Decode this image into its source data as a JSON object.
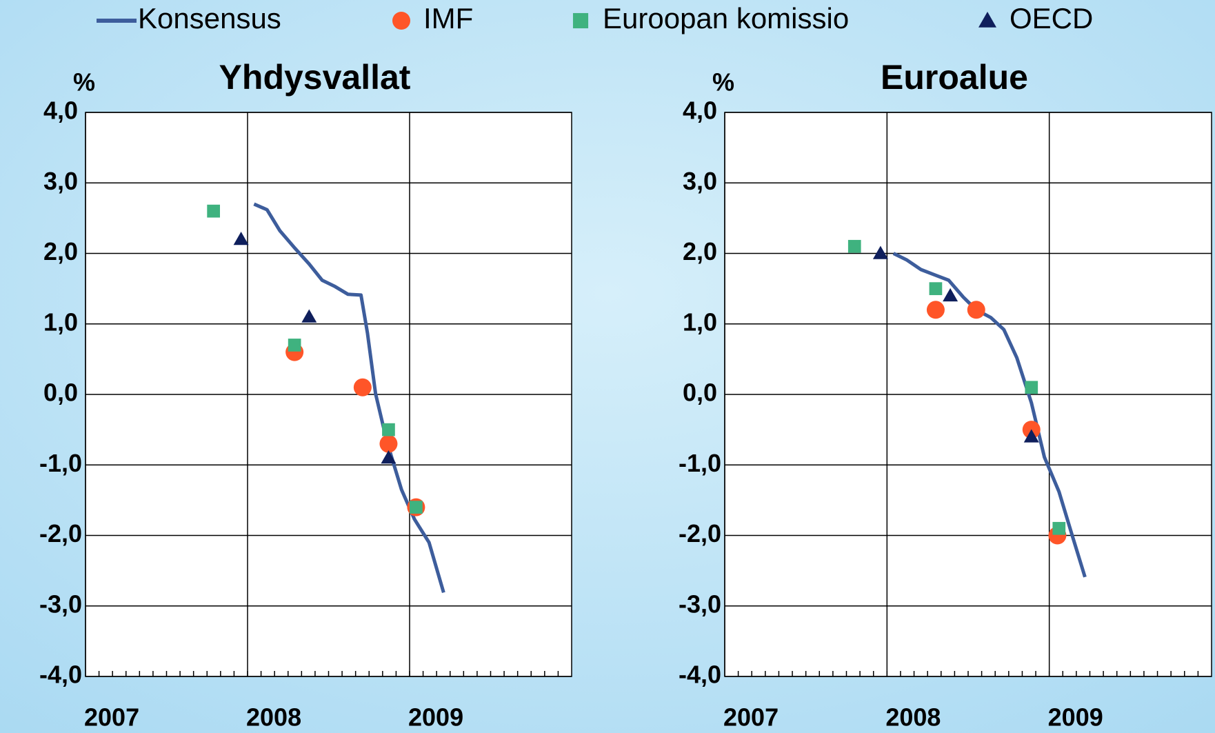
{
  "chart_data": [
    {
      "type": "line",
      "title": "Yhdysvallat",
      "ylabel": "%",
      "legend": "top",
      "xlim": [
        2007,
        2010
      ],
      "xticks": [
        2007,
        2008,
        2009
      ],
      "ylim": [
        -4,
        4
      ],
      "yticks": [
        {
          "value": -4,
          "label": "-4,0"
        },
        {
          "value": -3,
          "label": "-3,0"
        },
        {
          "value": -2,
          "label": "-2,0"
        },
        {
          "value": -1,
          "label": "-1,0"
        },
        {
          "value": 0,
          "label": "0,0"
        },
        {
          "value": 1,
          "label": "1,0"
        },
        {
          "value": 2,
          "label": "2,0"
        },
        {
          "value": 3,
          "label": "3,0"
        },
        {
          "value": 4,
          "label": "4,0"
        }
      ],
      "grid": true,
      "series": [
        {
          "name": "Konsensus",
          "type": "line",
          "color": "#3d5d9c",
          "x": [
            2008.04,
            2008.12,
            2008.2,
            2008.29,
            2008.38,
            2008.46,
            2008.54,
            2008.62,
            2008.7,
            2008.74,
            2008.79,
            2008.86,
            2008.95,
            2009.03,
            2009.12,
            2009.21
          ],
          "values": [
            2.7,
            2.62,
            2.32,
            2.08,
            1.85,
            1.62,
            1.53,
            1.42,
            1.41,
            0.87,
            0.01,
            -0.67,
            -1.35,
            -1.77,
            -2.1,
            -2.81
          ]
        },
        {
          "name": "IMF",
          "type": "scatter",
          "marker": "circle",
          "color": "#ff5528",
          "x": [
            2008.29,
            2008.71,
            2008.87,
            2009.04
          ],
          "values": [
            0.6,
            0.1,
            -0.7,
            -1.6
          ]
        },
        {
          "name": "Euroopan komissio",
          "type": "scatter",
          "marker": "square",
          "color": "#3fb27f",
          "x": [
            2007.79,
            2008.29,
            2008.87,
            2009.04
          ],
          "values": [
            2.6,
            0.7,
            -0.5,
            -1.6
          ]
        },
        {
          "name": "OECD",
          "type": "scatter",
          "marker": "triangle",
          "color": "#0f1f5c",
          "x": [
            2007.96,
            2008.38,
            2008.87
          ],
          "values": [
            2.2,
            1.1,
            -0.9
          ]
        }
      ]
    },
    {
      "type": "line",
      "title": "Euroalue",
      "ylabel": "%",
      "xlim": [
        2007,
        2010
      ],
      "xticks": [
        2007,
        2008,
        2009
      ],
      "ylim": [
        -4,
        4
      ],
      "yticks": [
        {
          "value": -4,
          "label": "-4,0"
        },
        {
          "value": -3,
          "label": "-3,0"
        },
        {
          "value": -2,
          "label": "-2,0"
        },
        {
          "value": -1,
          "label": "-1,0"
        },
        {
          "value": 0,
          "label": "0,0"
        },
        {
          "value": 1,
          "label": "1,0"
        },
        {
          "value": 2,
          "label": "2,0"
        },
        {
          "value": 3,
          "label": "3,0"
        },
        {
          "value": 4,
          "label": "4,0"
        }
      ],
      "grid": true,
      "series": [
        {
          "type": "line",
          "color": "#3d5d9c",
          "x": [
            2008.04,
            2008.12,
            2008.21,
            2008.3,
            2008.38,
            2008.47,
            2008.55,
            2008.64,
            2008.72,
            2008.8,
            2008.89,
            2008.97,
            2009.06,
            2009.14,
            2009.22
          ],
          "values": [
            2.0,
            1.91,
            1.77,
            1.69,
            1.62,
            1.38,
            1.2,
            1.09,
            0.92,
            0.52,
            -0.12,
            -0.89,
            -1.38,
            -1.99,
            -2.59
          ]
        },
        {
          "type": "scatter",
          "marker": "circle",
          "color": "#ff5528",
          "x": [
            2008.3,
            2008.55,
            2008.89,
            2009.05
          ],
          "values": [
            1.2,
            1.2,
            -0.5,
            -2.0
          ]
        },
        {
          "type": "scatter",
          "marker": "square",
          "color": "#3fb27f",
          "x": [
            2007.8,
            2008.3,
            2008.89,
            2009.06
          ],
          "values": [
            2.1,
            1.5,
            0.1,
            -1.9
          ]
        },
        {
          "type": "scatter",
          "marker": "triangle",
          "color": "#0f1f5c",
          "x": [
            2007.96,
            2008.39,
            2008.89
          ],
          "values": [
            2.0,
            1.4,
            -0.6
          ]
        }
      ]
    }
  ]
}
